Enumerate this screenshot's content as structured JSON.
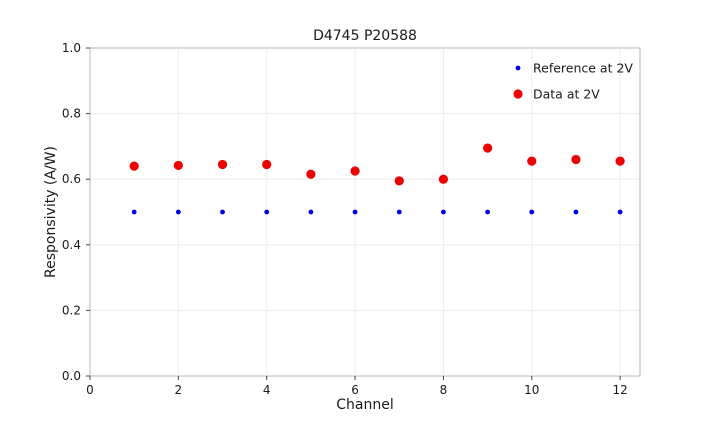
{
  "chart": {
    "title": "D4745 P20588",
    "xlabel": "Channel",
    "ylabel": "Responsivity (A/W)"
  },
  "chart_data": {
    "type": "scatter",
    "title": "D4745 P20588",
    "xlabel": "Channel",
    "ylabel": "Responsivity (A/W)",
    "x": [
      1,
      2,
      3,
      4,
      5,
      6,
      7,
      8,
      9,
      10,
      11,
      12
    ],
    "series": [
      {
        "name": "Reference at 2V",
        "color": "#0000ee",
        "marker_radius": 2.4,
        "values": [
          0.5,
          0.5,
          0.5,
          0.5,
          0.5,
          0.5,
          0.5,
          0.5,
          0.5,
          0.5,
          0.5,
          0.5
        ]
      },
      {
        "name": "Data at 2V",
        "color": "#ee0000",
        "marker_radius": 4.6,
        "values": [
          0.64,
          0.642,
          0.645,
          0.645,
          0.615,
          0.625,
          0.595,
          0.6,
          0.695,
          0.655,
          0.66,
          0.655
        ]
      }
    ],
    "xlim": [
      0,
      12.45
    ],
    "ylim": [
      0.0,
      1.0
    ],
    "xticks": [
      0,
      2,
      4,
      6,
      8,
      10,
      12
    ],
    "ytick_labels": [
      "0.0",
      "0.2",
      "0.4",
      "0.6",
      "0.8",
      "1.0"
    ],
    "yticks": [
      0.0,
      0.2,
      0.4,
      0.6,
      0.8,
      1.0
    ],
    "grid": true,
    "grid_color": "#ededed",
    "axes_border_color": "#c3c3c3",
    "tick_color": "#444444",
    "legend_position": "upper right"
  }
}
